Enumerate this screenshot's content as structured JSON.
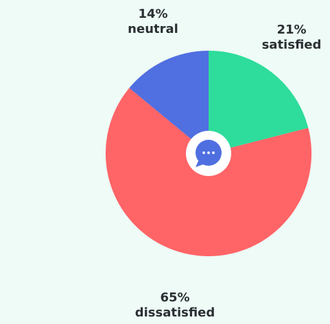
{
  "chart_data": {
    "type": "pie",
    "slices": [
      {
        "label": "satisfied",
        "percent_label": "21%",
        "value": 21,
        "color": "#2edc9b"
      },
      {
        "label": "dissatisfied",
        "percent_label": "65%",
        "value": 65,
        "color": "#ff6467"
      },
      {
        "label": "neutral",
        "percent_label": "14%",
        "value": 14,
        "color": "#506fe0"
      }
    ],
    "center_icon": "chat-bubble-icon",
    "center_icon_color": "#4f6fe0",
    "background": "#eefbf6"
  }
}
